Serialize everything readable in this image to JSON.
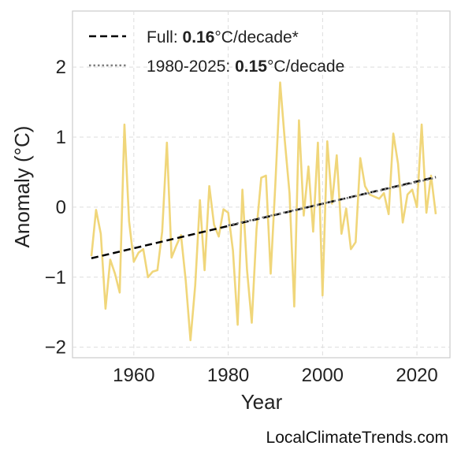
{
  "chart_data": {
    "type": "line",
    "xlabel": "Year",
    "ylabel": "Anomaly (°C)",
    "xlim": [
      1947,
      2027
    ],
    "ylim": [
      -2.15,
      2.8
    ],
    "x_ticks": [
      1960,
      1980,
      2000,
      2020
    ],
    "x_tick_labels": [
      "1960",
      "1980",
      "2000",
      "2020"
    ],
    "y_ticks": [
      -2,
      -1,
      0,
      1,
      2
    ],
    "y_tick_labels": [
      "−2",
      "−1",
      "0",
      "1",
      "2"
    ],
    "grid": true,
    "legend_position": "top-left",
    "series": [
      {
        "x": [
          1951,
          1952,
          1953,
          1954,
          1955,
          1956,
          1957,
          1958,
          1959,
          1960,
          1961,
          1962,
          1963,
          1964,
          1965,
          1966,
          1967,
          1968,
          1969,
          1970,
          1971,
          1972,
          1973,
          1974,
          1975,
          1976,
          1977,
          1978,
          1979,
          1980,
          1981,
          1982,
          1983,
          1984,
          1985,
          1986,
          1987,
          1988,
          1989,
          1990,
          1991,
          1992,
          1993,
          1994,
          1995,
          1996,
          1997,
          1998,
          1999,
          2000,
          2001,
          2002,
          2003,
          2004,
          2005,
          2006,
          2007,
          2008,
          2009,
          2010,
          2011,
          2012,
          2013,
          2014,
          2015,
          2016,
          2017,
          2018,
          2019,
          2020,
          2021,
          2022,
          2023,
          2024
        ],
        "values": [
          -0.7,
          -0.04,
          -0.38,
          -1.45,
          -0.75,
          -0.95,
          -1.22,
          1.18,
          -0.2,
          -0.78,
          -0.65,
          -0.6,
          -1.0,
          -0.92,
          -0.9,
          -0.35,
          0.92,
          -0.72,
          -0.55,
          -0.4,
          -1.05,
          -1.9,
          -1.12,
          0.1,
          -0.9,
          0.3,
          -0.25,
          -0.42,
          -0.03,
          -0.08,
          -0.62,
          -1.68,
          0.25,
          -0.9,
          -1.65,
          -0.32,
          0.42,
          0.45,
          -0.95,
          0.35,
          1.78,
          0.95,
          0.2,
          -1.42,
          1.24,
          -0.12,
          0.58,
          -0.35,
          0.92,
          -1.26,
          0.94,
          0.05,
          0.74,
          -0.38,
          -0.02,
          -0.6,
          -0.5,
          0.7,
          0.3,
          0.18,
          0.15,
          0.12,
          0.2,
          -0.1,
          1.05,
          0.62,
          -0.22,
          0.18,
          0.25,
          0.0,
          1.18,
          -0.08,
          0.45,
          -0.1
        ],
        "color": "#f0d67a"
      }
    ],
    "trend_lines": [
      {
        "label_prefix": "Full: ",
        "label_value": "0.16",
        "label_suffix": "°C/decade*",
        "x": [
          1951,
          2024
        ],
        "y": [
          -0.73,
          0.43
        ],
        "style": "dashed",
        "color": "#000000"
      },
      {
        "label_prefix": "1980-2025: ",
        "label_value": "0.15",
        "label_suffix": "°C/decade",
        "x": [
          1980,
          2024
        ],
        "y": [
          -0.26,
          0.42
        ],
        "style": "dotted",
        "color": "#7f7f7f"
      }
    ]
  },
  "watermark": "LocalClimateTrends.com"
}
